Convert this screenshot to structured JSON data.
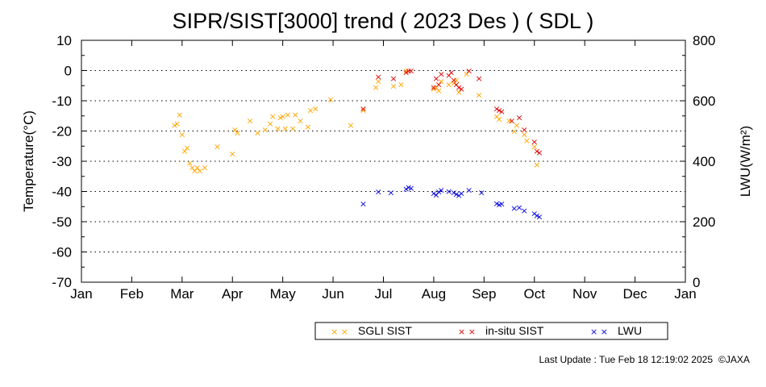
{
  "chart_data": {
    "type": "scatter",
    "title": "SIPR/SIST[3000] trend ( 2023 Des ) ( SDL )",
    "ylabel": "Temperature(°C)",
    "y2label": "LWU(W/m²)",
    "ylim": [
      -70,
      10
    ],
    "y2lim": [
      0,
      800
    ],
    "yticks": [
      10,
      0,
      -10,
      -20,
      -30,
      -40,
      -50,
      -60,
      -70
    ],
    "y2ticks": [
      800,
      600,
      400,
      200,
      0
    ],
    "months": [
      "Jan",
      "Feb",
      "Mar",
      "Apr",
      "May",
      "Jun",
      "Jul",
      "Aug",
      "Sep",
      "Oct",
      "Nov",
      "Dec",
      "Jan"
    ],
    "grid": "horizontal dotted",
    "marker": "×",
    "legend_position": "bottom",
    "series": [
      {
        "name": "SGLI SIST",
        "color": "#ffa500",
        "axis": "left",
        "points": [
          [
            2.85,
            -18
          ],
          [
            2.9,
            -17.5
          ],
          [
            2.95,
            -14.5
          ],
          [
            3.0,
            -21
          ],
          [
            3.05,
            -26.5
          ],
          [
            3.1,
            -25.5
          ],
          [
            3.15,
            -30.5
          ],
          [
            3.2,
            -32
          ],
          [
            3.25,
            -33
          ],
          [
            3.3,
            -32
          ],
          [
            3.35,
            -33
          ],
          [
            3.45,
            -32
          ],
          [
            3.7,
            -25
          ],
          [
            4.0,
            -27.5
          ],
          [
            4.05,
            -19.5
          ],
          [
            4.1,
            -20.5
          ],
          [
            4.35,
            -16.5
          ],
          [
            4.5,
            -20.5
          ],
          [
            4.65,
            -19.5
          ],
          [
            4.75,
            -17.5
          ],
          [
            4.8,
            -15
          ],
          [
            4.9,
            -19
          ],
          [
            4.95,
            -15.5
          ],
          [
            5.0,
            -15
          ],
          [
            5.05,
            -19
          ],
          [
            5.1,
            -14.5
          ],
          [
            5.2,
            -19
          ],
          [
            5.25,
            -14.5
          ],
          [
            5.35,
            -16.5
          ],
          [
            5.5,
            -18.5
          ],
          [
            5.55,
            -13
          ],
          [
            5.65,
            -12.5
          ],
          [
            5.95,
            -9.5
          ],
          [
            6.35,
            -18
          ],
          [
            6.6,
            -13
          ],
          [
            6.85,
            -5.5
          ],
          [
            6.9,
            -3.5
          ],
          [
            7.2,
            -5
          ],
          [
            7.35,
            -4.5
          ],
          [
            7.45,
            0
          ],
          [
            8.0,
            -6
          ],
          [
            8.05,
            -5.5
          ],
          [
            8.1,
            -6.5
          ],
          [
            8.15,
            -3.5
          ],
          [
            8.3,
            -4.5
          ],
          [
            8.4,
            -4
          ],
          [
            8.45,
            -3
          ],
          [
            8.5,
            -7
          ],
          [
            8.65,
            -1
          ],
          [
            8.9,
            -8
          ],
          [
            9.25,
            -15
          ],
          [
            9.3,
            -16
          ],
          [
            9.5,
            -16.5
          ],
          [
            9.6,
            -20
          ],
          [
            9.65,
            -18
          ],
          [
            9.8,
            -21
          ],
          [
            9.85,
            -23
          ],
          [
            10.0,
            -25
          ],
          [
            10.05,
            -31
          ]
        ]
      },
      {
        "name": "in-situ SIST",
        "color": "#dd0000",
        "axis": "left",
        "points": [
          [
            6.6,
            -12.5
          ],
          [
            6.9,
            -2
          ],
          [
            7.2,
            -2.5
          ],
          [
            7.45,
            -0.5
          ],
          [
            7.5,
            0
          ],
          [
            7.55,
            0
          ],
          [
            8.0,
            -5.5
          ],
          [
            8.05,
            -2.5
          ],
          [
            8.1,
            -4.5
          ],
          [
            8.15,
            -1
          ],
          [
            8.3,
            -1.5
          ],
          [
            8.35,
            -0.5
          ],
          [
            8.4,
            -3
          ],
          [
            8.45,
            -4.5
          ],
          [
            8.5,
            -5.5
          ],
          [
            8.55,
            -6
          ],
          [
            8.7,
            0
          ],
          [
            8.9,
            -2.5
          ],
          [
            9.25,
            -12.5
          ],
          [
            9.3,
            -13
          ],
          [
            9.35,
            -13.5
          ],
          [
            9.55,
            -16.5
          ],
          [
            9.7,
            -15.5
          ],
          [
            9.8,
            -19.5
          ],
          [
            10.0,
            -23.5
          ],
          [
            10.05,
            -26.5
          ],
          [
            10.1,
            -27
          ]
        ]
      },
      {
        "name": "LWU",
        "color": "#0000dd",
        "axis": "right",
        "points": [
          [
            6.6,
            260
          ],
          [
            6.9,
            300
          ],
          [
            7.15,
            298
          ],
          [
            7.45,
            310
          ],
          [
            7.5,
            315
          ],
          [
            7.55,
            312
          ],
          [
            8.0,
            295
          ],
          [
            8.05,
            290
          ],
          [
            8.1,
            300
          ],
          [
            8.15,
            305
          ],
          [
            8.3,
            302
          ],
          [
            8.4,
            298
          ],
          [
            8.45,
            292
          ],
          [
            8.5,
            288
          ],
          [
            8.55,
            295
          ],
          [
            8.7,
            305
          ],
          [
            8.95,
            298
          ],
          [
            9.25,
            262
          ],
          [
            9.3,
            258
          ],
          [
            9.35,
            260
          ],
          [
            9.6,
            245
          ],
          [
            9.7,
            248
          ],
          [
            9.8,
            238
          ],
          [
            10.0,
            228
          ],
          [
            10.05,
            222
          ],
          [
            10.1,
            218
          ]
        ]
      }
    ]
  },
  "footer": {
    "last_update": "Last Update : Tue Feb 18 12:19:02 2025",
    "credit": "©JAXA"
  }
}
